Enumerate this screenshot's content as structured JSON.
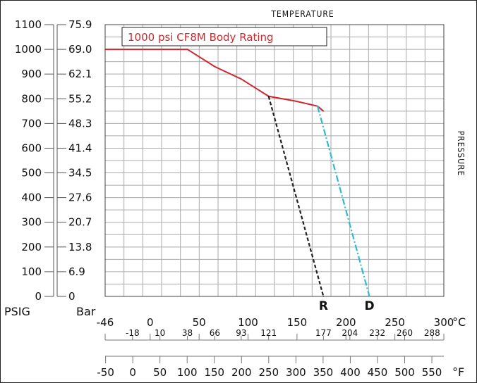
{
  "chart_data": {
    "type": "line",
    "title": "Temperature",
    "ylabel_right": "Pressure",
    "annotation": "1000 psi CF8M Body Rating",
    "y_psig": {
      "label": "PSIG",
      "ticks": [
        0,
        100,
        200,
        300,
        400,
        500,
        600,
        700,
        800,
        900,
        1000,
        1100
      ],
      "range": [
        0,
        1100
      ]
    },
    "y_bar": {
      "label": "Bar",
      "ticks": [
        "0",
        "6.9",
        "13.8",
        "20.7",
        "27.6",
        "34.5",
        "41.4",
        "48.3",
        "55.2",
        "62.1",
        "69.0",
        "75.9"
      ]
    },
    "x_celsius": {
      "unit": "°C",
      "major_ticks": [
        -46,
        0,
        50,
        100,
        150,
        200,
        250,
        300
      ],
      "minor_ticks": [
        -18,
        10,
        38,
        66,
        93,
        121,
        177,
        204,
        232,
        260,
        288
      ],
      "range": [
        -46,
        300
      ]
    },
    "x_fahrenheit": {
      "unit": "°F",
      "ticks": [
        -50,
        0,
        50,
        100,
        150,
        200,
        250,
        300,
        350,
        400,
        450,
        500,
        550
      ]
    },
    "series": [
      {
        "name": "",
        "color": "#d0272e",
        "style": "solid",
        "x": [
          -46,
          38,
          66,
          93,
          121,
          149,
          171,
          177
        ],
        "y": [
          1000,
          1000,
          930,
          880,
          810,
          790,
          770,
          750
        ]
      },
      {
        "name": "R",
        "color": "#222222",
        "style": "dashed",
        "x": [
          121,
          177
        ],
        "y": [
          810,
          0
        ]
      },
      {
        "name": "D",
        "color": "#2bbcd0",
        "style": "dashdot",
        "x": [
          171,
          224
        ],
        "y": [
          770,
          0
        ]
      }
    ],
    "end_labels": [
      {
        "text": "R",
        "x": 177
      },
      {
        "text": "D",
        "x": 224
      }
    ],
    "grid": true
  }
}
